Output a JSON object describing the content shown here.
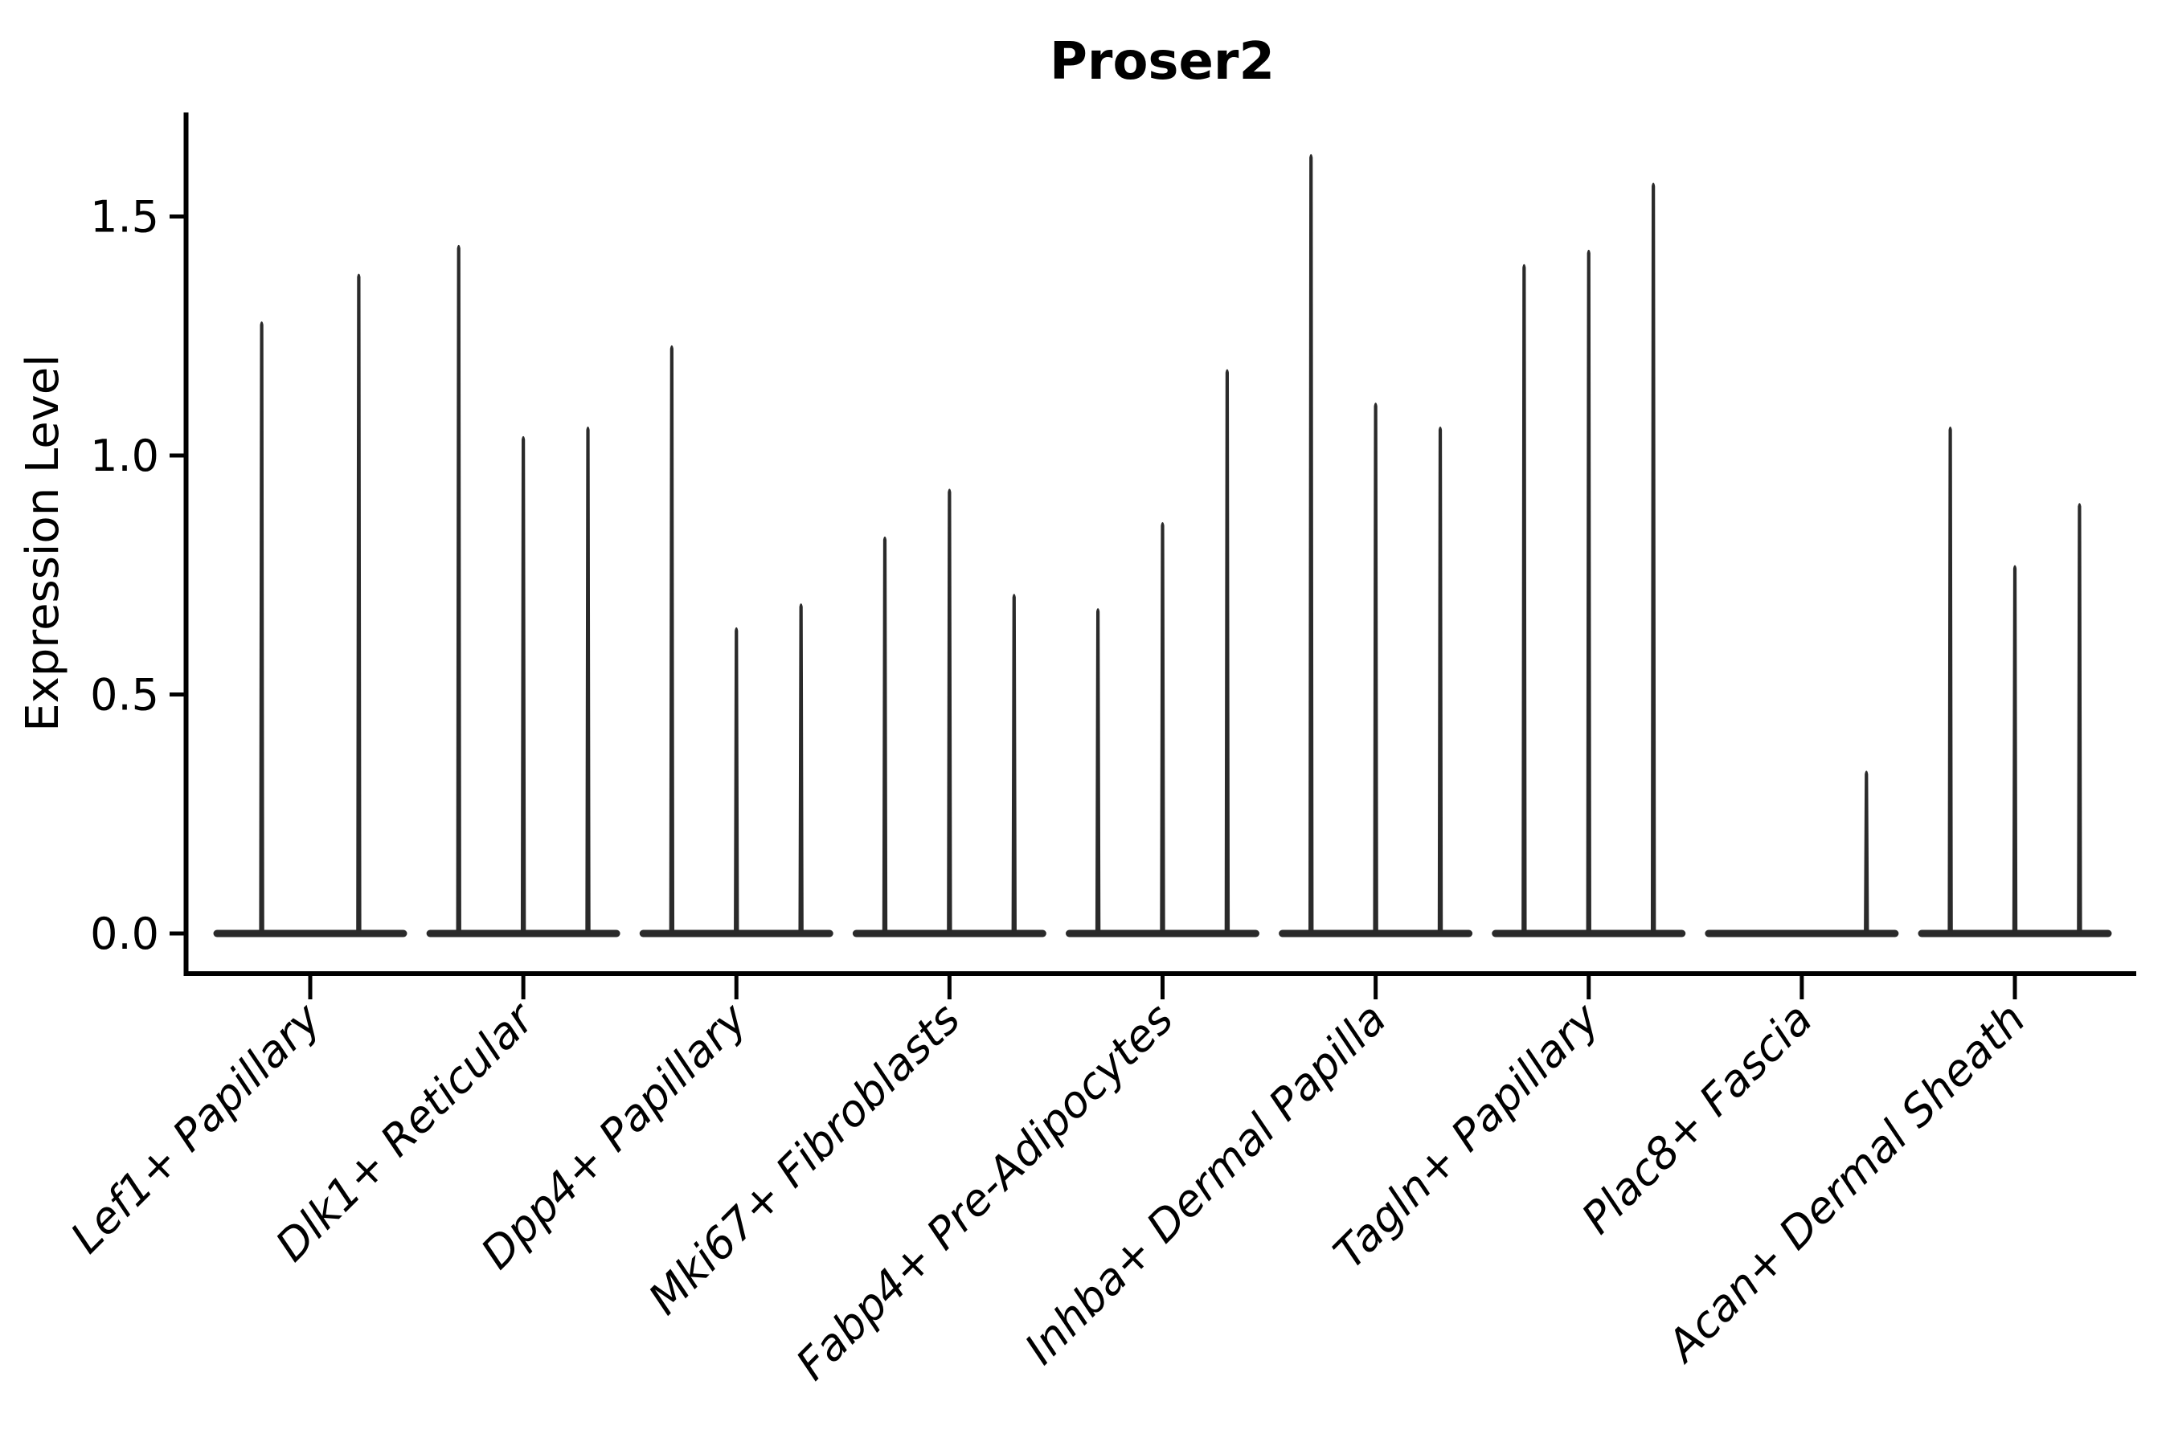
{
  "chart_data": {
    "type": "violin",
    "title": "Proser2",
    "ylabel": "Expression Level",
    "xlabel": "",
    "background_color": "#ffffff",
    "violin_color": "#2a2a2a",
    "axis_color": "#000000",
    "text_color": "#000000",
    "grid": false,
    "legend": "none",
    "ylim": [
      -0.08,
      1.72
    ],
    "yticks": [
      0.0,
      0.5,
      1.0,
      1.5
    ],
    "ytick_labels": [
      "0.0",
      "0.5",
      "1.0",
      "1.5"
    ],
    "x_label_rotation_deg": 45,
    "groups": [
      {
        "category": "Lef1+ Papillary",
        "violin_max_expression": [
          1.28,
          1.38
        ]
      },
      {
        "category": "Dlk1+ Reticular",
        "violin_max_expression": [
          1.44,
          1.04,
          1.06
        ]
      },
      {
        "category": "Dpp4+ Papillary",
        "violin_max_expression": [
          1.23,
          0.64,
          0.69
        ]
      },
      {
        "category": "Mki67+ Fibroblasts",
        "violin_max_expression": [
          0.83,
          0.93,
          0.71
        ]
      },
      {
        "category": "Fabp4+ Pre-Adipocytes",
        "violin_max_expression": [
          0.68,
          0.86,
          1.18
        ]
      },
      {
        "category": "Inhba+ Dermal Papilla",
        "violin_max_expression": [
          1.63,
          1.11,
          1.06
        ]
      },
      {
        "category": "Tagln+ Papillary",
        "violin_max_expression": [
          1.4,
          1.43,
          1.57
        ]
      },
      {
        "category": "Plac8+ Fascia",
        "violin_max_expression": [
          0,
          0,
          0.34
        ]
      },
      {
        "category": "Acan+ Dermal Sheath",
        "violin_max_expression": [
          1.06,
          0.77,
          0.9
        ]
      }
    ],
    "note": "Each violin is collapsed flat at 0 (bulk of cells) with a thin tapered spike rising to the maximum expression value; 0 entries are violins with no spike."
  }
}
